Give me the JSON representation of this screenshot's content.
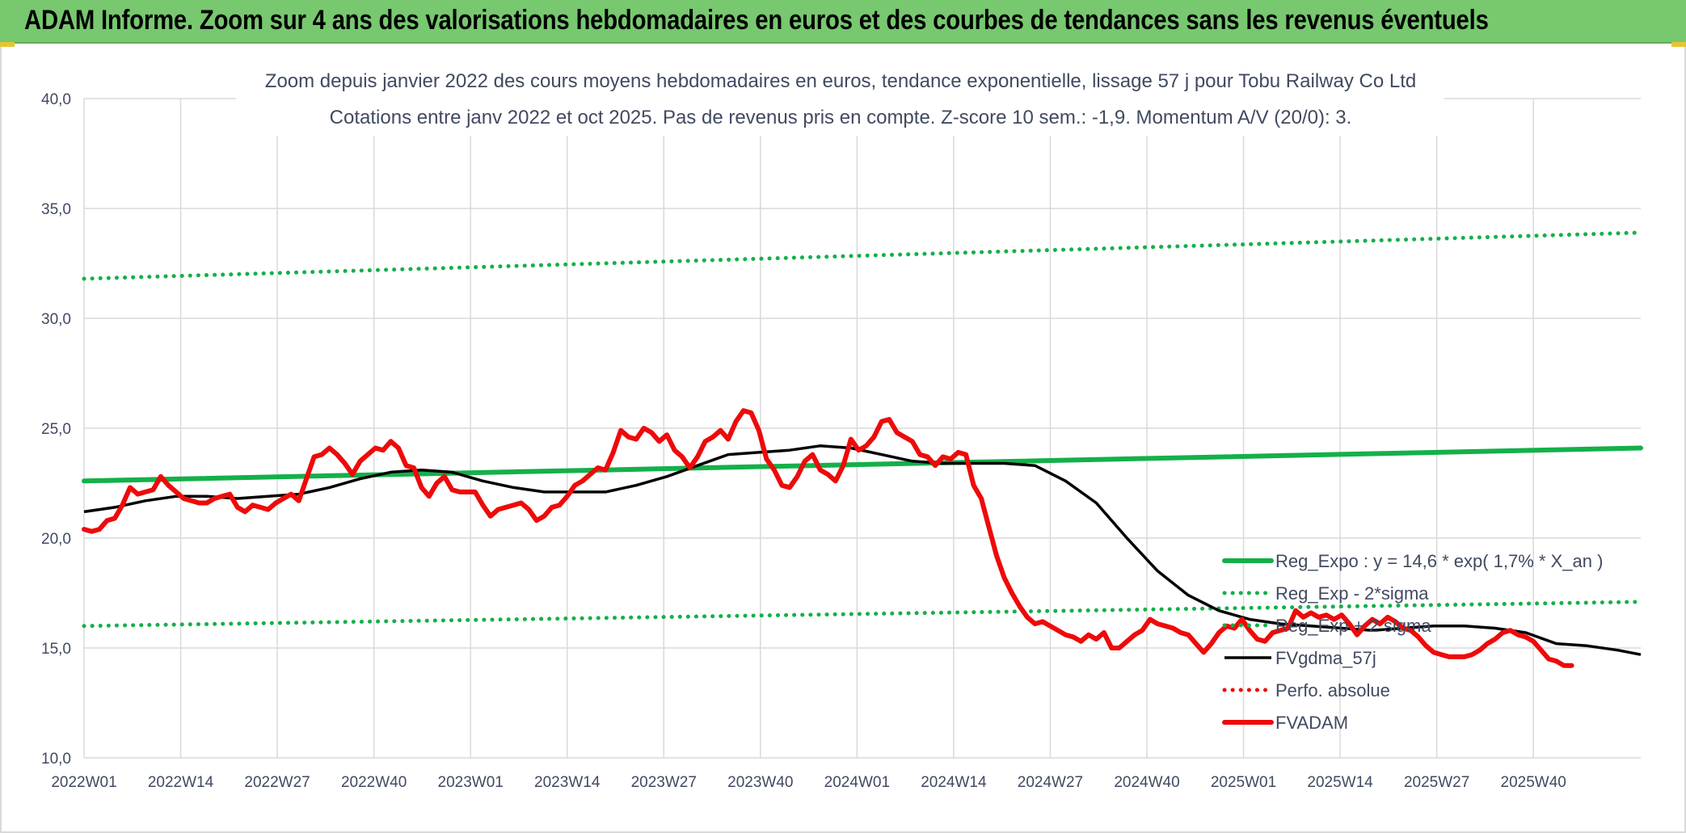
{
  "banner": {
    "title": "ADAM Informe. Zoom sur 4 ans des valorisations hebdomadaires en euros et des courbes de tendances sans les revenus éventuels"
  },
  "colors": {
    "banner_bg": "#77c86f",
    "green": "#14b04a",
    "red": "#ee0a0a",
    "black": "#000000"
  },
  "chart_data": {
    "type": "line",
    "title_line1": "Zoom depuis janvier 2022 des cours moyens hebdomadaires en euros, tendance exponentielle, lissage 57 j pour Tobu Railway Co Ltd",
    "title_line2": "Cotations entre janv 2022 et oct 2025. Pas de revenus pris en compte. Z-score 10 sem.: -1,9. Momentum A/V (20/0): 3.",
    "x_tick_labels": [
      "2022W01",
      "2022W14",
      "2022W27",
      "2022W40",
      "2023W01",
      "2023W14",
      "2023W27",
      "2023W40",
      "2024W01",
      "2024W14",
      "2024W27",
      "2024W40",
      "2025W01",
      "2025W14",
      "2025W27",
      "2025W40"
    ],
    "y_tick_labels": [
      "10,0",
      "15,0",
      "20,0",
      "25,0",
      "30,0",
      "35,0",
      "40,0"
    ],
    "y_ticks": [
      10,
      15,
      20,
      25,
      30,
      35,
      40
    ],
    "ylim": [
      10,
      40
    ],
    "xlim_weeks": [
      0,
      203
    ],
    "grid": true,
    "legend_position": "right",
    "series": [
      {
        "name": "Reg_Expo : y = 14,6 * exp( 1,7% *  X_an )",
        "style": "solid-thick",
        "color": "#14b04a",
        "points": [
          [
            0,
            22.6
          ],
          [
            203,
            24.1
          ]
        ]
      },
      {
        "name": "Reg_Exp - 2*sigma",
        "style": "dotted",
        "color": "#14b04a",
        "points": [
          [
            0,
            16.0
          ],
          [
            203,
            17.1
          ]
        ]
      },
      {
        "name": "Reg_Exp + 2 sigma",
        "style": "dotted",
        "color": "#14b04a",
        "points": [
          [
            0,
            31.8
          ],
          [
            203,
            33.9
          ]
        ]
      },
      {
        "name": "FVgdma_57j",
        "style": "solid",
        "color": "#000000",
        "points": [
          [
            0,
            21.2
          ],
          [
            4,
            21.4
          ],
          [
            8,
            21.7
          ],
          [
            12,
            21.9
          ],
          [
            16,
            21.9
          ],
          [
            20,
            21.8
          ],
          [
            24,
            21.9
          ],
          [
            28,
            22.0
          ],
          [
            32,
            22.3
          ],
          [
            36,
            22.7
          ],
          [
            40,
            23.0
          ],
          [
            44,
            23.1
          ],
          [
            48,
            23.0
          ],
          [
            52,
            22.6
          ],
          [
            56,
            22.3
          ],
          [
            60,
            22.1
          ],
          [
            64,
            22.1
          ],
          [
            68,
            22.1
          ],
          [
            72,
            22.4
          ],
          [
            76,
            22.8
          ],
          [
            80,
            23.3
          ],
          [
            84,
            23.8
          ],
          [
            88,
            23.9
          ],
          [
            92,
            24.0
          ],
          [
            96,
            24.2
          ],
          [
            100,
            24.1
          ],
          [
            104,
            23.8
          ],
          [
            108,
            23.5
          ],
          [
            112,
            23.4
          ],
          [
            116,
            23.4
          ],
          [
            120,
            23.4
          ],
          [
            124,
            23.3
          ],
          [
            128,
            22.6
          ],
          [
            132,
            21.6
          ],
          [
            136,
            20.0
          ],
          [
            140,
            18.5
          ],
          [
            144,
            17.4
          ],
          [
            148,
            16.7
          ],
          [
            152,
            16.3
          ],
          [
            156,
            16.1
          ],
          [
            160,
            16.0
          ],
          [
            164,
            15.9
          ],
          [
            168,
            15.8
          ],
          [
            172,
            15.9
          ],
          [
            176,
            16.0
          ],
          [
            180,
            16.0
          ],
          [
            184,
            15.9
          ],
          [
            188,
            15.7
          ],
          [
            192,
            15.2
          ],
          [
            196,
            15.1
          ],
          [
            200,
            14.9
          ],
          [
            203,
            14.7
          ]
        ]
      },
      {
        "name": "Perfo. absolue",
        "style": "dotted",
        "color": "#ee0a0a",
        "points": []
      },
      {
        "name": "FVADAM",
        "style": "solid-thick",
        "color": "#ee0a0a",
        "points": [
          [
            0,
            20.4
          ],
          [
            1,
            20.3
          ],
          [
            2,
            20.4
          ],
          [
            3,
            20.8
          ],
          [
            4,
            20.9
          ],
          [
            5,
            21.5
          ],
          [
            6,
            22.3
          ],
          [
            7,
            22.0
          ],
          [
            8,
            22.1
          ],
          [
            9,
            22.2
          ],
          [
            10,
            22.8
          ],
          [
            11,
            22.4
          ],
          [
            12,
            22.1
          ],
          [
            13,
            21.8
          ],
          [
            14,
            21.7
          ],
          [
            15,
            21.6
          ],
          [
            16,
            21.6
          ],
          [
            17,
            21.8
          ],
          [
            18,
            21.9
          ],
          [
            19,
            22.0
          ],
          [
            20,
            21.4
          ],
          [
            21,
            21.2
          ],
          [
            22,
            21.5
          ],
          [
            23,
            21.4
          ],
          [
            24,
            21.3
          ],
          [
            25,
            21.6
          ],
          [
            26,
            21.8
          ],
          [
            27,
            22.0
          ],
          [
            28,
            21.7
          ],
          [
            29,
            22.7
          ],
          [
            30,
            23.7
          ],
          [
            31,
            23.8
          ],
          [
            32,
            24.1
          ],
          [
            33,
            23.8
          ],
          [
            34,
            23.4
          ],
          [
            35,
            22.9
          ],
          [
            36,
            23.5
          ],
          [
            37,
            23.8
          ],
          [
            38,
            24.1
          ],
          [
            39,
            24.0
          ],
          [
            40,
            24.4
          ],
          [
            41,
            24.1
          ],
          [
            42,
            23.3
          ],
          [
            43,
            23.2
          ],
          [
            44,
            22.3
          ],
          [
            45,
            21.9
          ],
          [
            46,
            22.5
          ],
          [
            47,
            22.8
          ],
          [
            48,
            22.2
          ],
          [
            49,
            22.1
          ],
          [
            50,
            22.1
          ],
          [
            51,
            22.1
          ],
          [
            52,
            21.5
          ],
          [
            53,
            21.0
          ],
          [
            54,
            21.3
          ],
          [
            55,
            21.4
          ],
          [
            56,
            21.5
          ],
          [
            57,
            21.6
          ],
          [
            58,
            21.3
          ],
          [
            59,
            20.8
          ],
          [
            60,
            21.0
          ],
          [
            61,
            21.4
          ],
          [
            62,
            21.5
          ],
          [
            63,
            21.9
          ],
          [
            64,
            22.4
          ],
          [
            65,
            22.6
          ],
          [
            66,
            22.9
          ],
          [
            67,
            23.2
          ],
          [
            68,
            23.1
          ],
          [
            69,
            23.9
          ],
          [
            70,
            24.9
          ],
          [
            71,
            24.6
          ],
          [
            72,
            24.5
          ],
          [
            73,
            25.0
          ],
          [
            74,
            24.8
          ],
          [
            75,
            24.4
          ],
          [
            76,
            24.7
          ],
          [
            77,
            24.0
          ],
          [
            78,
            23.7
          ],
          [
            79,
            23.2
          ],
          [
            80,
            23.7
          ],
          [
            81,
            24.4
          ],
          [
            82,
            24.6
          ],
          [
            83,
            24.9
          ],
          [
            84,
            24.5
          ],
          [
            85,
            25.3
          ],
          [
            86,
            25.8
          ],
          [
            87,
            25.7
          ],
          [
            88,
            24.9
          ],
          [
            89,
            23.6
          ],
          [
            90,
            23.1
          ],
          [
            91,
            22.4
          ],
          [
            92,
            22.3
          ],
          [
            93,
            22.8
          ],
          [
            94,
            23.5
          ],
          [
            95,
            23.8
          ],
          [
            96,
            23.1
          ],
          [
            97,
            22.9
          ],
          [
            98,
            22.6
          ],
          [
            99,
            23.3
          ],
          [
            100,
            24.5
          ],
          [
            101,
            24.0
          ],
          [
            102,
            24.2
          ],
          [
            103,
            24.6
          ],
          [
            104,
            25.3
          ],
          [
            105,
            25.4
          ],
          [
            106,
            24.8
          ],
          [
            107,
            24.6
          ],
          [
            108,
            24.4
          ],
          [
            109,
            23.8
          ],
          [
            110,
            23.7
          ],
          [
            111,
            23.3
          ],
          [
            112,
            23.7
          ],
          [
            113,
            23.6
          ],
          [
            114,
            23.9
          ],
          [
            115,
            23.8
          ],
          [
            116,
            22.4
          ],
          [
            117,
            21.8
          ],
          [
            118,
            20.5
          ],
          [
            119,
            19.2
          ],
          [
            120,
            18.2
          ],
          [
            121,
            17.5
          ],
          [
            122,
            16.9
          ],
          [
            123,
            16.4
          ],
          [
            124,
            16.1
          ],
          [
            125,
            16.2
          ],
          [
            126,
            16.0
          ],
          [
            127,
            15.8
          ],
          [
            128,
            15.6
          ],
          [
            129,
            15.5
          ],
          [
            130,
            15.3
          ],
          [
            131,
            15.6
          ],
          [
            132,
            15.4
          ],
          [
            133,
            15.7
          ],
          [
            134,
            15.0
          ],
          [
            135,
            15.0
          ],
          [
            136,
            15.3
          ],
          [
            137,
            15.6
          ],
          [
            138,
            15.8
          ],
          [
            139,
            16.3
          ],
          [
            140,
            16.1
          ],
          [
            141,
            16.0
          ],
          [
            142,
            15.9
          ],
          [
            143,
            15.7
          ],
          [
            144,
            15.6
          ],
          [
            145,
            15.2
          ],
          [
            146,
            14.8
          ],
          [
            147,
            15.2
          ],
          [
            148,
            15.7
          ],
          [
            149,
            16.0
          ],
          [
            150,
            15.9
          ],
          [
            151,
            16.3
          ],
          [
            152,
            15.8
          ],
          [
            153,
            15.4
          ],
          [
            154,
            15.3
          ],
          [
            155,
            15.7
          ],
          [
            156,
            15.8
          ],
          [
            157,
            15.9
          ],
          [
            158,
            16.7
          ],
          [
            159,
            16.4
          ],
          [
            160,
            16.6
          ],
          [
            161,
            16.4
          ],
          [
            162,
            16.5
          ],
          [
            163,
            16.3
          ],
          [
            164,
            16.5
          ],
          [
            165,
            16.1
          ],
          [
            166,
            15.6
          ],
          [
            167,
            16.0
          ],
          [
            168,
            16.3
          ],
          [
            169,
            16.1
          ],
          [
            170,
            16.4
          ],
          [
            171,
            16.2
          ],
          [
            172,
            15.9
          ],
          [
            173,
            15.8
          ],
          [
            174,
            15.5
          ],
          [
            175,
            15.1
          ],
          [
            176,
            14.8
          ],
          [
            177,
            14.7
          ],
          [
            178,
            14.6
          ],
          [
            179,
            14.6
          ],
          [
            180,
            14.6
          ],
          [
            181,
            14.7
          ],
          [
            182,
            14.9
          ],
          [
            183,
            15.2
          ],
          [
            184,
            15.4
          ],
          [
            185,
            15.7
          ],
          [
            186,
            15.8
          ],
          [
            187,
            15.6
          ],
          [
            188,
            15.5
          ],
          [
            189,
            15.3
          ],
          [
            190,
            14.9
          ],
          [
            191,
            14.5
          ],
          [
            192,
            14.4
          ],
          [
            193,
            14.2
          ],
          [
            194,
            14.2
          ]
        ]
      }
    ]
  }
}
